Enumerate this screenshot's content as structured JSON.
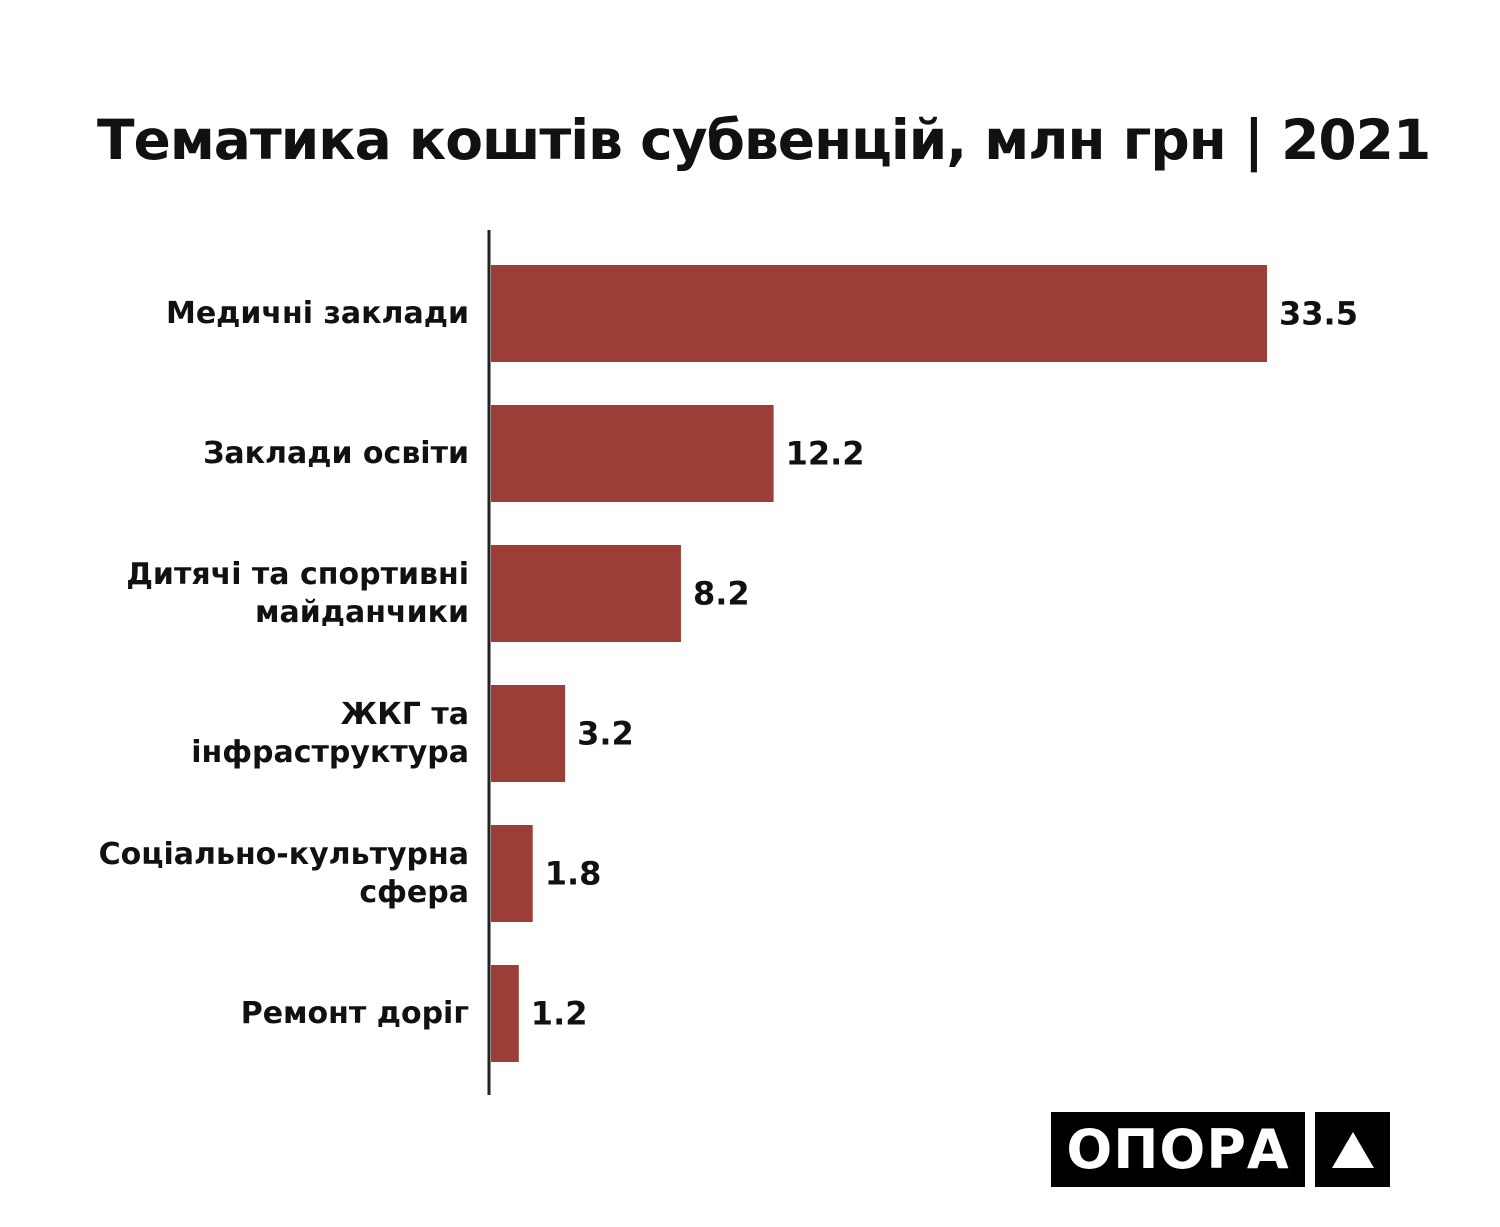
{
  "chart_data": {
    "type": "bar",
    "orientation": "horizontal",
    "title": "Тематика коштів субвенцій, млн грн | 2021",
    "categories": [
      [
        "Медичні заклади"
      ],
      [
        "Заклади освіти"
      ],
      [
        "Дитячі та спортивні",
        "майданчики"
      ],
      [
        "ЖКГ та",
        "інфраструктура"
      ],
      [
        "Соціально-культурна",
        "сфера"
      ],
      [
        "Ремонт доріг"
      ]
    ],
    "values": [
      33.5,
      12.2,
      8.2,
      3.2,
      1.8,
      1.2
    ],
    "value_labels": [
      "33.5",
      "12.2",
      "8.2",
      "3.2",
      "1.8",
      "1.2"
    ],
    "xlim": [
      0,
      33.5
    ],
    "grid": false,
    "bar_color": "#9c3e35",
    "axis_color": "#222222"
  },
  "logo": {
    "text": "ОПОРА",
    "mark": "triangle-up-icon",
    "background": "#000000",
    "color": "#ffffff"
  }
}
